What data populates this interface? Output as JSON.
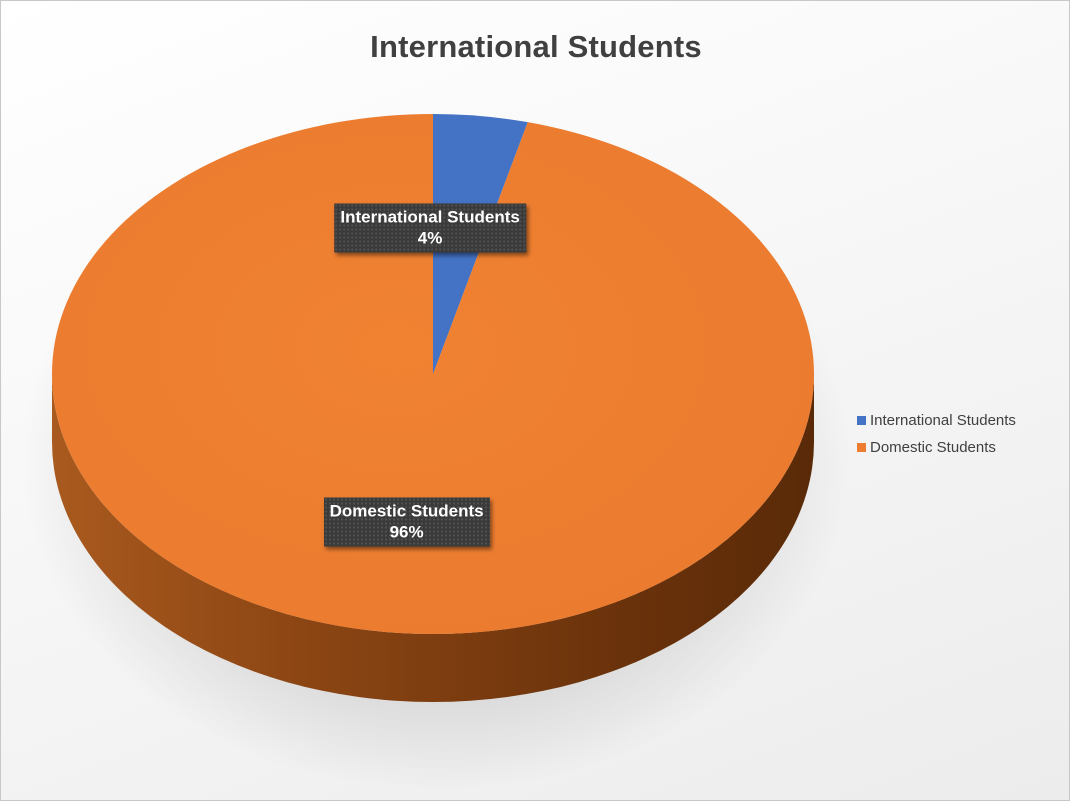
{
  "chart_data": {
    "type": "pie",
    "title": "International Students",
    "style": "3d",
    "legend_position": "right",
    "categories": [
      "International Students",
      "Domestic Students"
    ],
    "values": [
      4,
      96
    ],
    "units": "%",
    "colors": [
      "#4472c4",
      "#ed7d31"
    ],
    "data_labels": [
      {
        "name": "International Students",
        "value": "4%"
      },
      {
        "name": "Domestic Students",
        "value": "96%"
      }
    ]
  }
}
